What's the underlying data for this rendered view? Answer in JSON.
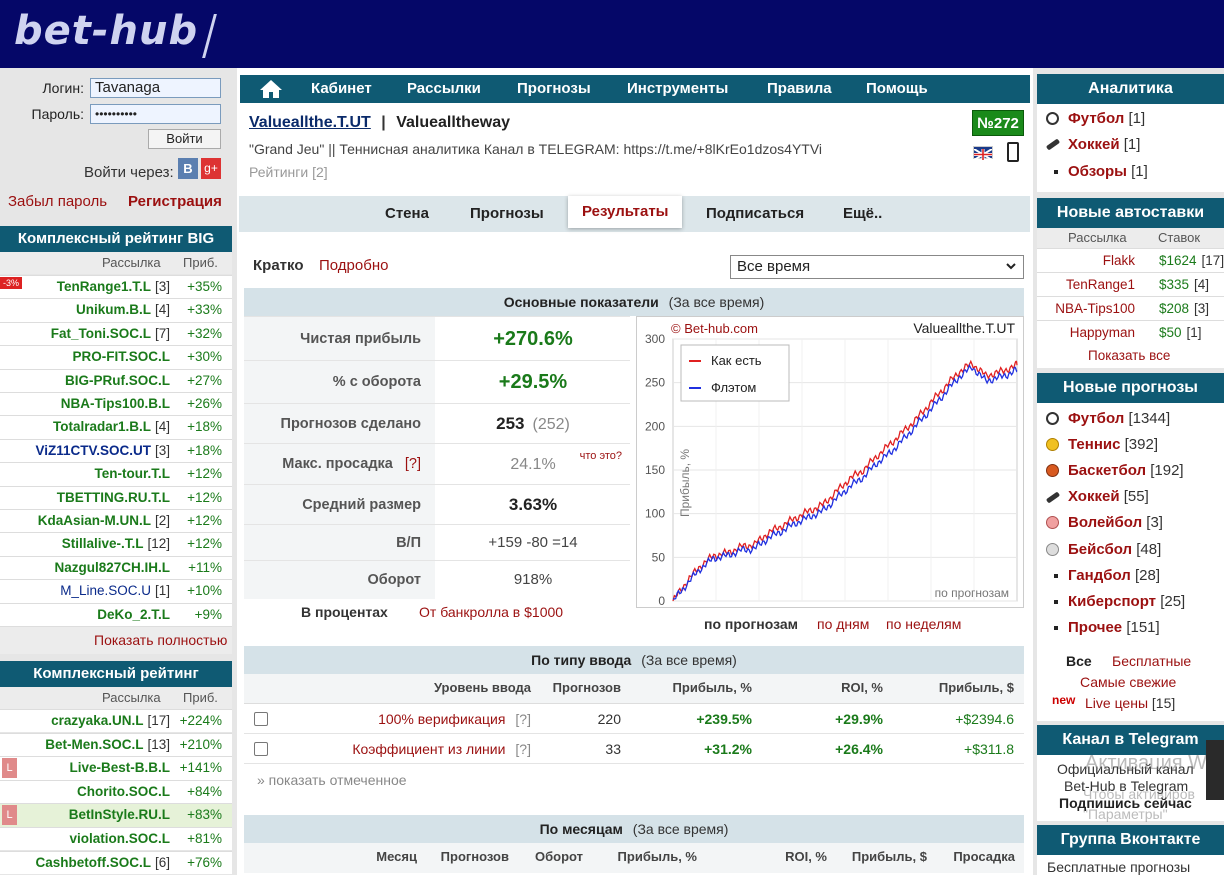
{
  "header": {
    "logo": "bet-hub"
  },
  "login": {
    "login_label": "Логин:",
    "login_value": "Tavanaga",
    "password_label": "Пароль:",
    "password_value": "••••••••••",
    "submit": "Войти",
    "via": "Войти через:",
    "vk": "В",
    "gplus": "g+",
    "forgot": "Забыл пароль",
    "register": "Регистрация"
  },
  "rating_big": {
    "title": "Комплексный рейтинг BIG",
    "col1": "Рассылка",
    "col2": "Приб.",
    "badge": "-3%",
    "rows": [
      {
        "name": "TenRange1.T.L",
        "count": "[3]",
        "profit": "+35%"
      },
      {
        "name": "Unikum.B.L",
        "count": "[4]",
        "profit": "+33%"
      },
      {
        "name": "Fat_Toni.SOC.L",
        "count": "[7]",
        "profit": "+32%"
      },
      {
        "name": "PRO-FIT.SOC.L",
        "count": "",
        "profit": "+30%"
      },
      {
        "name": "BIG-PRuf.SOC.L",
        "count": "",
        "profit": "+27%"
      },
      {
        "name": "NBA-Tips100.B.L",
        "count": "",
        "profit": "+26%"
      },
      {
        "name": "Totalradar1.B.L",
        "count": "[4]",
        "profit": "+18%"
      },
      {
        "name": "ViZ11CTV.SOC.UT",
        "count": "[3]",
        "profit": "+18%"
      },
      {
        "name": "Ten-tour.T.L",
        "count": "",
        "profit": "+12%"
      },
      {
        "name": "TBETTING.RU.T.L",
        "count": "",
        "profit": "+12%"
      },
      {
        "name": "KdaAsian-M.UN.L",
        "count": "[2]",
        "profit": "+12%"
      },
      {
        "name": "Stillalive-.T.L",
        "count": "[12]",
        "profit": "+12%"
      },
      {
        "name": "Nazgul827CH.IH.L",
        "count": "",
        "profit": "+11%"
      },
      {
        "name": "M_Line.SOC.U",
        "count": "[1]",
        "profit": "+10%"
      },
      {
        "name": "DeKo_2.T.L",
        "count": "",
        "profit": "+9%"
      }
    ],
    "show_all": "Показать полностью"
  },
  "rating": {
    "title": "Комплексный рейтинг",
    "col1": "Рассылка",
    "col2": "Приб.",
    "rows": [
      {
        "name": "crazyaka.UN.L",
        "count": "[17]",
        "profit": "+224%"
      },
      {
        "name": "Bet-Men.SOC.L",
        "count": "[13]",
        "profit": "+210%"
      },
      {
        "name": "Live-Best-B.B.L",
        "count": "",
        "profit": "+141%"
      },
      {
        "name": "Chorito.SOC.L",
        "count": "",
        "profit": "+84%"
      },
      {
        "name": "BetInStyle.RU.L",
        "count": "",
        "profit": "+83%"
      },
      {
        "name": "violation.SOC.L",
        "count": "",
        "profit": "+81%"
      },
      {
        "name": "Cashbetoff.SOC.L",
        "count": "[6]",
        "profit": "+76%"
      }
    ]
  },
  "nav": {
    "items": [
      "Кабинет",
      "Рассылки",
      "Прогнозы",
      "Инструменты",
      "Правила",
      "Помощь"
    ]
  },
  "profile": {
    "name": "Valueallthe.T.UT",
    "sep": "|",
    "title": "Valuealltheway",
    "desc": "\"Grand Jeu\" || Теннисная аналитика Канал в TELEGRAM: https://t.me/+8lKrEo1dzos4YTVi",
    "ratings": "Рейтинги [2]",
    "rank": "№272"
  },
  "tabs": [
    "Стена",
    "Прогнозы",
    "Результаты",
    "Подписаться",
    "Ещё.."
  ],
  "view": {
    "brief": "Кратко",
    "detailed": "Подробно",
    "period": "Все время"
  },
  "main_stats": {
    "title": "Основные показатели",
    "period": "(За все время)",
    "rows": [
      {
        "label": "Чистая прибыль",
        "value": "+270.6%"
      },
      {
        "label": "% с оборота",
        "value": "+29.5%"
      },
      {
        "label": "Прогнозов сделано",
        "value": "253",
        "extra": "(252)"
      },
      {
        "label": "Макс. просадка",
        "hint": "[?]",
        "value": "24.1%",
        "extra": "что это?"
      },
      {
        "label": "Средний размер",
        "value": "3.63%"
      },
      {
        "label": "В/П",
        "value": "+159 -80 =14"
      },
      {
        "label": "Оборот",
        "value": "918%"
      }
    ],
    "percent": "В процентах",
    "bank": "От банкролла в $1000"
  },
  "chart_data": {
    "type": "line",
    "copyright": "© Bet-hub.com",
    "name": "Valueallthe.T.UT",
    "ylabel": "Прибыль, %",
    "xlabel": "по прогнозам",
    "ylim": [
      0,
      300
    ],
    "yticks": [
      0,
      50,
      100,
      150,
      200,
      250,
      300
    ],
    "legend": "top-left",
    "series": [
      {
        "name": "Как есть",
        "color": "#e02020",
        "x": [
          0,
          10,
          20,
          30,
          40,
          50,
          60,
          70,
          80,
          90,
          100,
          110,
          120,
          130,
          140,
          150,
          160,
          170,
          180,
          190,
          200,
          210,
          220,
          230,
          240,
          250,
          253
        ],
        "values": [
          0,
          22,
          40,
          52,
          55,
          62,
          65,
          78,
          86,
          95,
          103,
          110,
          125,
          140,
          150,
          166,
          180,
          195,
          210,
          228,
          245,
          262,
          272,
          258,
          262,
          268,
          270
        ]
      },
      {
        "name": "Флэтом",
        "color": "#2030e0",
        "x": [
          0,
          10,
          20,
          30,
          40,
          50,
          60,
          70,
          80,
          90,
          100,
          110,
          120,
          130,
          140,
          150,
          160,
          170,
          180,
          190,
          200,
          210,
          220,
          230,
          240,
          250,
          253
        ],
        "values": [
          0,
          19,
          37,
          49,
          52,
          58,
          60,
          72,
          80,
          89,
          96,
          103,
          117,
          131,
          142,
          158,
          170,
          186,
          203,
          220,
          238,
          256,
          268,
          252,
          256,
          262,
          264
        ]
      }
    ]
  },
  "chart_toggle": {
    "by_bets": "по прогнозам",
    "by_days": "по дням",
    "by_weeks": "по неделям"
  },
  "by_input": {
    "title": "По типу ввода",
    "period": "(За все время)",
    "cols": [
      "Уровень ввода",
      "Прогнозов",
      "Прибыль, %",
      "ROI, %",
      "Прибыль, $"
    ],
    "rows": [
      {
        "level": "100% верификация",
        "hint": "[?]",
        "bets": "220",
        "profit": "+239.5%",
        "roi": "+29.9%",
        "usd": "+$2394.6"
      },
      {
        "level": "Коэффициент из линии",
        "hint": "[?]",
        "bets": "33",
        "profit": "+31.2%",
        "roi": "+26.4%",
        "usd": "+$311.8"
      }
    ],
    "show_marked": "» показать отмеченное"
  },
  "by_month": {
    "title": "По месяцам",
    "period": "(За все время)",
    "cols": [
      "Месяц",
      "Прогнозов",
      "Оборот",
      "Прибыль, %",
      "ROI, %",
      "Прибыль, $",
      "Просадка"
    ]
  },
  "analytics": {
    "title": "Аналитика",
    "items": [
      {
        "name": "Футбол",
        "count": "[1]"
      },
      {
        "name": "Хоккей",
        "count": "[1]"
      },
      {
        "name": "Обзоры",
        "count": "[1]"
      }
    ]
  },
  "autobets": {
    "title": "Новые автоставки",
    "col1": "Рассылка",
    "col2": "Ставок",
    "rows": [
      {
        "name": "Flakk",
        "sum": "$1624",
        "count": "[17]"
      },
      {
        "name": "TenRange1",
        "sum": "$335",
        "count": "[4]"
      },
      {
        "name": "NBA-Tips100",
        "sum": "$208",
        "count": "[3]"
      },
      {
        "name": "Happyman",
        "sum": "$50",
        "count": "[1]"
      }
    ],
    "show_all": "Показать все"
  },
  "new_tips": {
    "title": "Новые прогнозы",
    "items": [
      {
        "name": "Футбол",
        "count": "[1344]"
      },
      {
        "name": "Теннис",
        "count": "[392]"
      },
      {
        "name": "Баскетбол",
        "count": "[192]"
      },
      {
        "name": "Хоккей",
        "count": "[55]"
      },
      {
        "name": "Волейбол",
        "count": "[3]"
      },
      {
        "name": "Бейсбол",
        "count": "[48]"
      },
      {
        "name": "Гандбол",
        "count": "[28]"
      },
      {
        "name": "Киберспорт",
        "count": "[25]"
      },
      {
        "name": "Прочее",
        "count": "[151]"
      }
    ],
    "all": "Все",
    "free": "Бесплатные",
    "fresh": "Самые свежие",
    "new": "new",
    "live": "Live цены",
    "live_count": "[15]"
  },
  "telegram": {
    "title": "Канал в Telegram",
    "line1": "Официальный канал",
    "line2": "Bet-Hub в Telegram",
    "subscribe": "Подпишись сейчас"
  },
  "vk_group": {
    "title": "Группа Вконтакте",
    "line1": "Бесплатные прогнозы"
  },
  "watermark": {
    "line1": "Активация W",
    "line2": "Чтобы активиров",
    "line3": "\"Параметры\""
  }
}
